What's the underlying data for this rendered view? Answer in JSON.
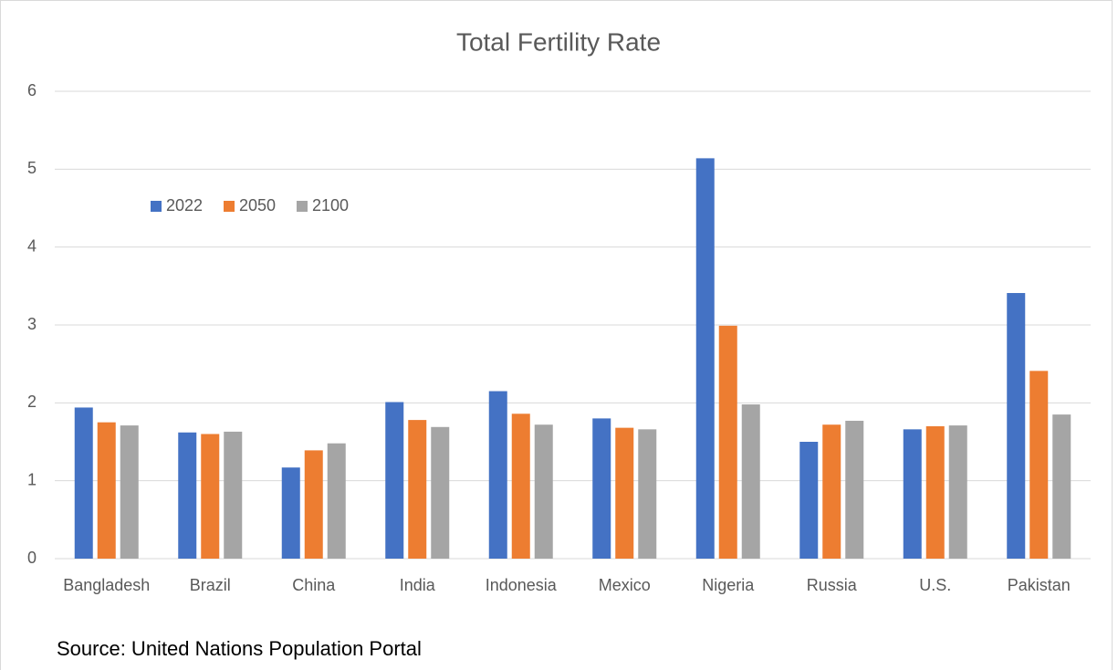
{
  "chart_data": {
    "type": "bar",
    "title": "Total Fertility Rate",
    "categories": [
      "Bangladesh",
      "Brazil",
      "China",
      "India",
      "Indonesia",
      "Mexico",
      "Nigeria",
      "Russia",
      "U.S.",
      "Pakistan"
    ],
    "series": [
      {
        "name": "2022",
        "color": "#4472c4",
        "values": [
          1.94,
          1.62,
          1.17,
          2.01,
          2.15,
          1.8,
          5.14,
          1.5,
          1.66,
          3.41
        ]
      },
      {
        "name": "2050",
        "color": "#ed7d31",
        "values": [
          1.75,
          1.6,
          1.39,
          1.78,
          1.86,
          1.68,
          2.99,
          1.72,
          1.7,
          2.41
        ]
      },
      {
        "name": "2100",
        "color": "#a5a5a5",
        "values": [
          1.71,
          1.63,
          1.48,
          1.69,
          1.72,
          1.66,
          1.98,
          1.77,
          1.71,
          1.85
        ]
      }
    ],
    "ylim": [
      0,
      6
    ],
    "yticks": [
      0,
      1,
      2,
      3,
      4,
      5,
      6
    ],
    "grid": true,
    "legend": "upper left",
    "annotation": "Source: United Nations Population Portal"
  }
}
